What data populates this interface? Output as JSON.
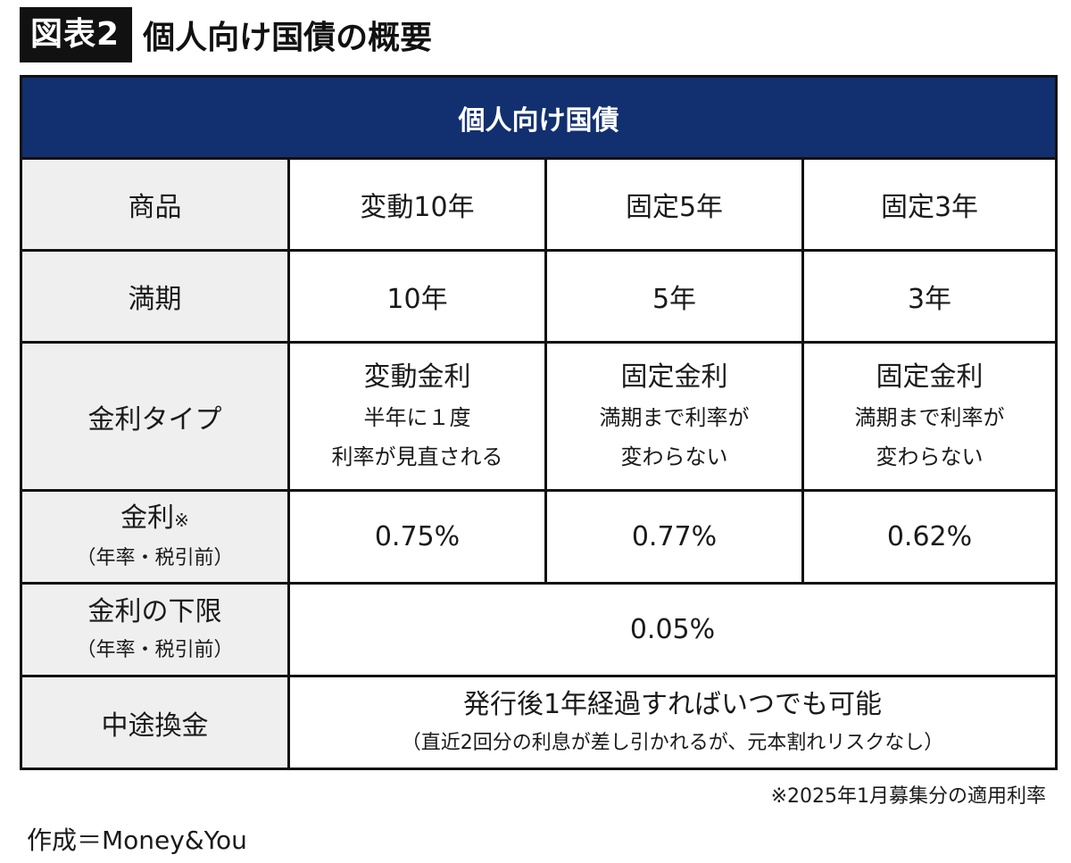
{
  "header": {
    "figure_label": "図表2",
    "title": "個人向け国債の概要"
  },
  "table": {
    "title": "個人向け国債",
    "rows": {
      "product": {
        "label": "商品",
        "values": [
          "変動10年",
          "固定5年",
          "固定3年"
        ]
      },
      "maturity": {
        "label": "満期",
        "values": [
          "10年",
          "5年",
          "3年"
        ]
      },
      "rate_type": {
        "label": "金利タイプ",
        "values": [
          {
            "main": "変動金利",
            "line1": "半年に１度",
            "line2": "利率が見直される"
          },
          {
            "main": "固定金利",
            "line1": "満期まで利率が",
            "line2": "変わらない"
          },
          {
            "main": "固定金利",
            "line1": "満期まで利率が",
            "line2": "変わらない"
          }
        ]
      },
      "rate": {
        "label": "金利",
        "label_mark": "※",
        "label_sub": "（年率・税引前）",
        "values": [
          "0.75%",
          "0.77%",
          "0.62%"
        ]
      },
      "rate_floor": {
        "label": "金利の下限",
        "label_sub": "（年率・税引前）",
        "value": "0.05%"
      },
      "redemption": {
        "label": "中途換金",
        "main": "発行後1年経過すればいつでも可能",
        "sub": "（直近2回分の利息が差し引かれるが、元本割れリスクなし）"
      }
    }
  },
  "footnote": "※2025年1月募集分の適用利率",
  "credit": "作成＝Money&You"
}
